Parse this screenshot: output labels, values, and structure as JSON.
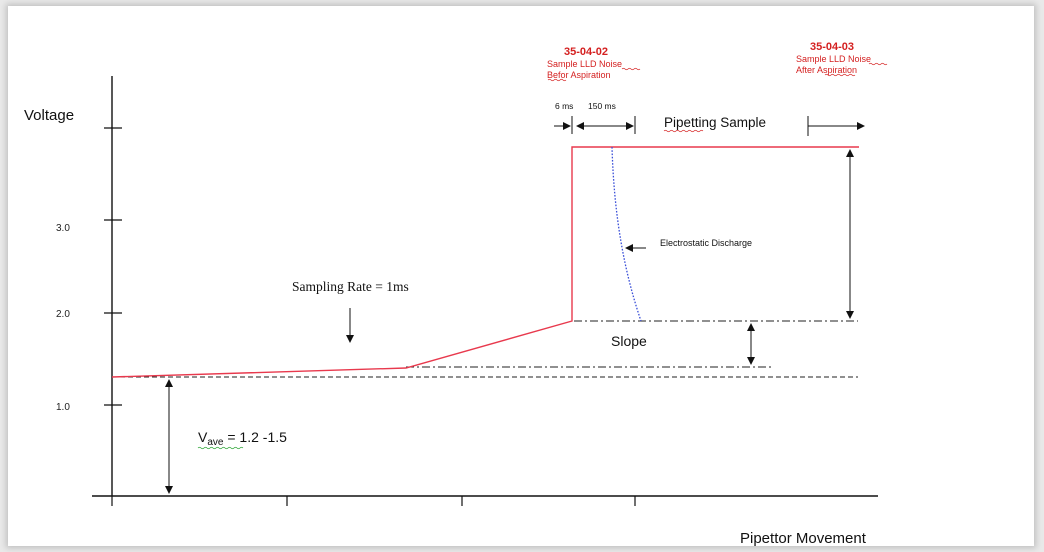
{
  "axes": {
    "y_label": "Voltage",
    "x_label": "Pipettor Movement",
    "y_ticks": [
      "3.0",
      "2.0",
      "1.0"
    ]
  },
  "labels": {
    "code_before": "35-04-02",
    "before_line1": "Sample LLD Noise",
    "before_line2": "Befor Aspiration",
    "code_after": "35-04-03",
    "after_line1": "Sample LLD Noise",
    "after_line2": "After Aspiration",
    "t6": "6 ms",
    "t150": "150 ms",
    "pipetting": "Pipetting Sample",
    "esd": "Electrostatic Discharge",
    "sampling": "Sampling Rate = 1ms",
    "slope": "Slope",
    "vave_main": "V",
    "vave_sub": "ave",
    "vave_value": " = 1.2 -1.5"
  },
  "colors": {
    "signal": "#e8394d",
    "discharge": "#3a4fd8",
    "annotation_red": "#d42020",
    "axis": "#111111"
  }
}
